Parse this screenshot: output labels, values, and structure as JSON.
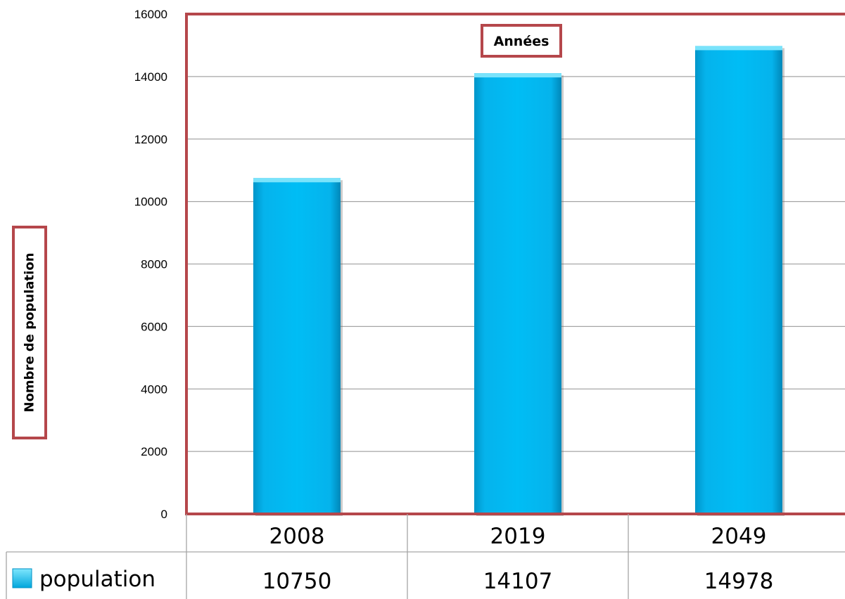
{
  "chart_data": {
    "type": "bar",
    "title": "Années",
    "ylabel": "Nombre de population",
    "xlabel": "",
    "categories": [
      "2008",
      "2019",
      "2049"
    ],
    "series": [
      {
        "name": "population",
        "values": [
          10750,
          14107,
          14978
        ]
      }
    ],
    "ylim": [
      0,
      16000
    ],
    "yticks": [
      "0",
      "2000",
      "4000",
      "6000",
      "8000",
      "10000",
      "12000",
      "14000",
      "16000"
    ],
    "data_table": {
      "legend_label": "population",
      "values_text": [
        "10750",
        "14107",
        "14978"
      ]
    },
    "grid": true,
    "legend": "data-table-left",
    "colors": {
      "bar": "#00b8f1",
      "bar_top": "#7ae3fb",
      "frame": "#b5474b",
      "grid": "#a6a6a6"
    }
  }
}
